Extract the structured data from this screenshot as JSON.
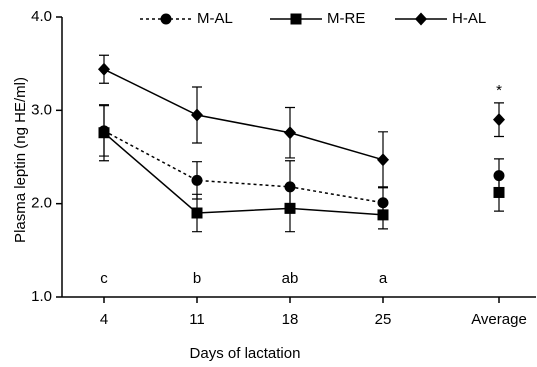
{
  "chart_data": {
    "type": "line",
    "x_label": "Days of lactation",
    "y_label": "Plasma leptin (ng HE/ml)",
    "categories": [
      "4",
      "11",
      "18",
      "25",
      "Average"
    ],
    "series": [
      {
        "name": "M-AL",
        "color": "#000000",
        "marker": "circle",
        "dashed": true,
        "values": [
          2.78,
          2.25,
          2.18,
          2.01,
          2.3
        ],
        "errors": [
          0.27,
          0.2,
          0.28,
          0.17,
          0.18
        ]
      },
      {
        "name": "M-RE",
        "color": "#000000",
        "marker": "square",
        "dashed": false,
        "values": [
          2.76,
          1.9,
          1.95,
          1.88,
          2.12
        ],
        "errors": [
          0.3,
          0.2,
          0.25,
          0.15,
          0.2
        ]
      },
      {
        "name": "H-AL",
        "color": "#000000",
        "marker": "diamond",
        "dashed": false,
        "values": [
          3.44,
          2.95,
          2.76,
          2.47,
          2.9
        ],
        "errors": [
          0.15,
          0.3,
          0.27,
          0.3,
          0.18
        ]
      }
    ],
    "ylim": [
      1,
      4
    ],
    "yticks": [
      {
        "value": 1,
        "label": "1.0"
      },
      {
        "value": 2,
        "label": "2.0"
      },
      {
        "value": 3,
        "label": "3.0"
      },
      {
        "value": 4,
        "label": "4.0"
      }
    ],
    "annotations": [
      {
        "text": "c",
        "x": "4"
      },
      {
        "text": "b",
        "x": "11"
      },
      {
        "text": "ab",
        "x": "18"
      },
      {
        "text": "a",
        "x": "25"
      },
      {
        "text": "*",
        "x": "Average",
        "series": "H-AL"
      }
    ],
    "legend": "top",
    "grid": false
  }
}
